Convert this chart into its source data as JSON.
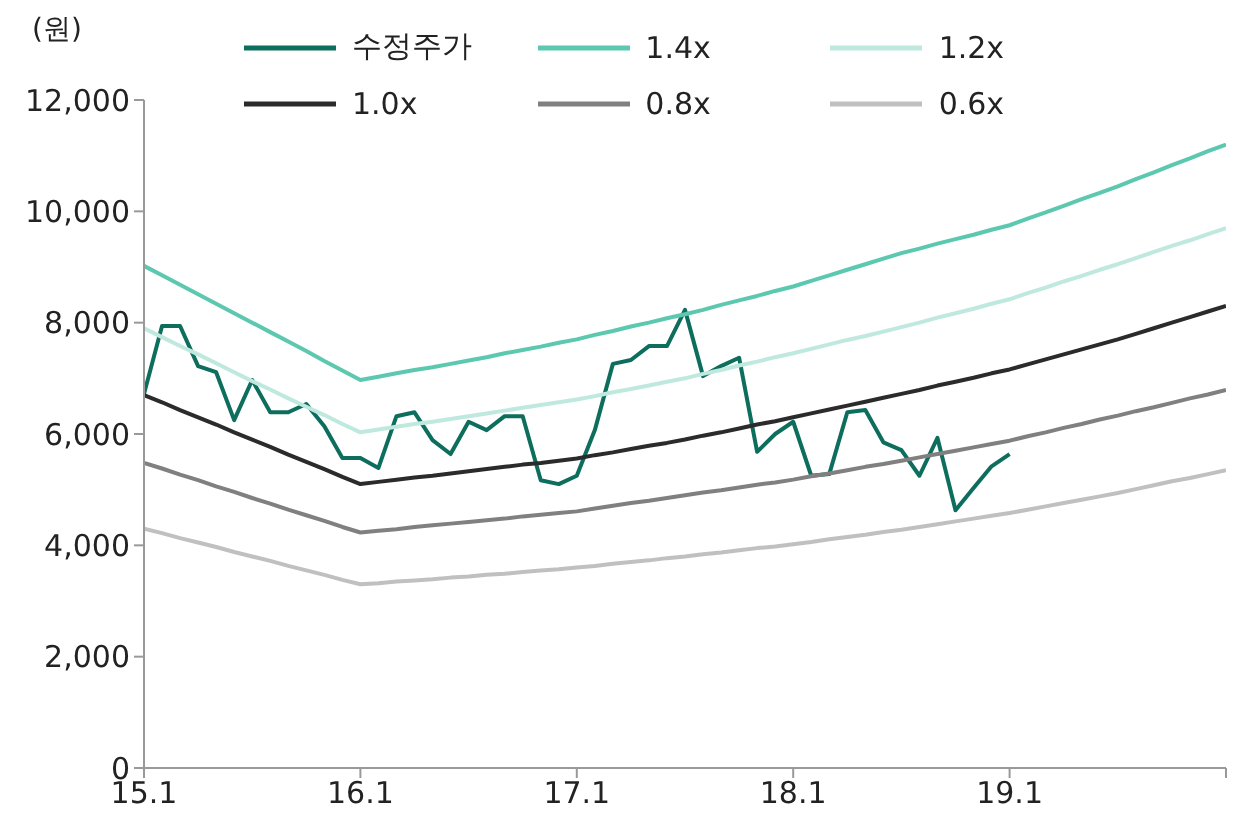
{
  "chart_data": {
    "type": "line",
    "ylabel": "(원)",
    "categories": [
      "15.1",
      null,
      null,
      null,
      null,
      null,
      null,
      null,
      null,
      null,
      null,
      null,
      "16.1",
      null,
      null,
      null,
      null,
      null,
      null,
      null,
      null,
      null,
      null,
      null,
      "17.1",
      null,
      null,
      null,
      null,
      null,
      null,
      null,
      null,
      null,
      null,
      null,
      "18.1",
      null,
      null,
      null,
      null,
      null,
      null,
      null,
      null,
      null,
      null,
      null,
      "19.1",
      null,
      null,
      null,
      null,
      null,
      null,
      null,
      null,
      null,
      null,
      null,
      null
    ],
    "ylim": [
      0,
      12000
    ],
    "yticks": [
      0,
      {
        "value": 2000,
        "label": "2,000"
      },
      {
        "value": 4000,
        "label": "4,000"
      },
      {
        "value": 6000,
        "label": "6,000"
      },
      {
        "value": 8000,
        "label": "8,000"
      },
      {
        "value": 10000,
        "label": "10,000"
      },
      {
        "value": 12000,
        "label": "12,000"
      }
    ],
    "grid": false,
    "legend": "top",
    "marker": "none",
    "line_style": "solid",
    "series": [
      {
        "name": "수정주가",
        "color": "#0e6e5e",
        "values": [
          6720,
          7940,
          7940,
          7220,
          7110,
          6250,
          6970,
          6390,
          6390,
          6540,
          6140,
          5570,
          5570,
          5390,
          6320,
          6390,
          5890,
          5640,
          6220,
          6070,
          6320,
          6320,
          5170,
          5100,
          5250,
          6070,
          7260,
          7330,
          7580,
          7580,
          8230,
          7040,
          7220,
          7370,
          5680,
          6000,
          6220,
          5250,
          5280,
          6390,
          6430,
          5850,
          5710,
          5250,
          5930,
          4630,
          5030,
          5420,
          5640,
          null,
          null,
          null,
          null,
          null,
          null,
          null,
          null,
          null,
          null,
          null,
          null
        ]
      },
      {
        "name": "1.4x",
        "color": "#5cc8b0",
        "values": [
          9020,
          8850,
          8680,
          8510,
          8340,
          8170,
          8000,
          7830,
          7660,
          7490,
          7310,
          7140,
          6970,
          7030,
          7090,
          7150,
          7200,
          7260,
          7320,
          7380,
          7450,
          7510,
          7570,
          7640,
          7700,
          7780,
          7850,
          7930,
          8000,
          8080,
          8150,
          8230,
          8320,
          8400,
          8480,
          8570,
          8650,
          8750,
          8850,
          8950,
          9050,
          9150,
          9250,
          9330,
          9420,
          9500,
          9580,
          9670,
          9750,
          9870,
          9980,
          10100,
          10220,
          10330,
          10450,
          10580,
          10700,
          10830,
          10950,
          11080,
          11200
        ]
      },
      {
        "name": "1.2x",
        "color": "#bfe9df",
        "values": [
          7900,
          7740,
          7580,
          7430,
          7270,
          7110,
          6950,
          6800,
          6640,
          6490,
          6340,
          6180,
          6030,
          6080,
          6130,
          6180,
          6220,
          6270,
          6320,
          6370,
          6420,
          6470,
          6520,
          6570,
          6620,
          6680,
          6750,
          6810,
          6870,
          6940,
          7000,
          7080,
          7150,
          7230,
          7300,
          7380,
          7450,
          7530,
          7610,
          7690,
          7760,
          7840,
          7920,
          8000,
          8090,
          8170,
          8250,
          8340,
          8420,
          8530,
          8630,
          8740,
          8840,
          8950,
          9050,
          9160,
          9270,
          9380,
          9480,
          9590,
          9700
        ]
      },
      {
        "name": "1.0x",
        "color": "#2b2b2b",
        "values": [
          6700,
          6570,
          6430,
          6300,
          6170,
          6030,
          5900,
          5770,
          5630,
          5500,
          5370,
          5230,
          5100,
          5140,
          5180,
          5220,
          5250,
          5290,
          5330,
          5370,
          5410,
          5450,
          5480,
          5520,
          5560,
          5620,
          5670,
          5730,
          5790,
          5840,
          5900,
          5970,
          6030,
          6100,
          6170,
          6230,
          6300,
          6370,
          6440,
          6510,
          6580,
          6650,
          6720,
          6790,
          6870,
          6940,
          7010,
          7090,
          7160,
          7250,
          7340,
          7430,
          7520,
          7610,
          7700,
          7800,
          7900,
          8000,
          8100,
          8200,
          8300
        ]
      },
      {
        "name": "0.8x",
        "color": "#808080",
        "values": [
          5480,
          5380,
          5270,
          5170,
          5060,
          4960,
          4850,
          4750,
          4640,
          4540,
          4440,
          4330,
          4230,
          4260,
          4290,
          4330,
          4360,
          4390,
          4420,
          4450,
          4480,
          4520,
          4550,
          4580,
          4610,
          4660,
          4710,
          4760,
          4800,
          4850,
          4900,
          4950,
          4990,
          5040,
          5090,
          5130,
          5180,
          5240,
          5290,
          5350,
          5410,
          5460,
          5520,
          5580,
          5640,
          5700,
          5760,
          5820,
          5880,
          5960,
          6030,
          6110,
          6180,
          6260,
          6330,
          6410,
          6480,
          6560,
          6640,
          6710,
          6790
        ]
      },
      {
        "name": "0.6x",
        "color": "#c0c0c0",
        "values": [
          4300,
          4220,
          4130,
          4050,
          3970,
          3880,
          3800,
          3720,
          3630,
          3550,
          3470,
          3380,
          3300,
          3320,
          3350,
          3370,
          3390,
          3420,
          3440,
          3470,
          3490,
          3520,
          3550,
          3570,
          3600,
          3630,
          3670,
          3700,
          3730,
          3770,
          3800,
          3840,
          3870,
          3910,
          3950,
          3980,
          4020,
          4060,
          4110,
          4150,
          4190,
          4240,
          4280,
          4330,
          4380,
          4430,
          4480,
          4530,
          4580,
          4640,
          4700,
          4760,
          4820,
          4880,
          4940,
          5010,
          5080,
          5150,
          5210,
          5280,
          5350
        ]
      }
    ]
  }
}
